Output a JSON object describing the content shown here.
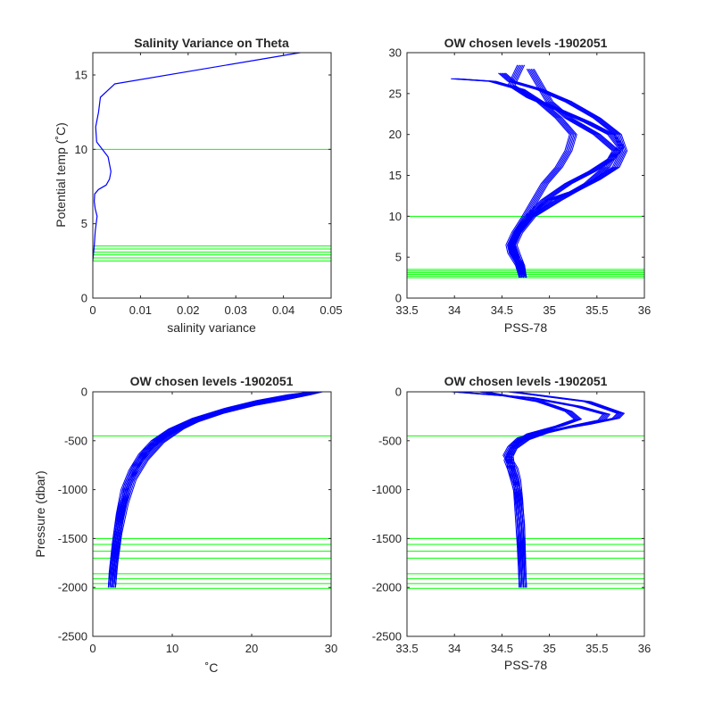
{
  "colors": {
    "profile": "#0000ff",
    "levels": "#00ff00",
    "axes": "#262626"
  },
  "chart_data": [
    {
      "type": "line",
      "title": "Salinity Variance on Theta",
      "xlabel": "salinity variance",
      "ylabel": "Potential temp (˚C)",
      "xlim": [
        0,
        0.05
      ],
      "ylim": [
        0,
        16.5
      ],
      "xticks": [
        0,
        0.01,
        0.02,
        0.03,
        0.04,
        0.05
      ],
      "xtick_labels": [
        "0",
        "0.01",
        "0.02",
        "0.03",
        "0.04",
        "0.05"
      ],
      "yticks": [
        0,
        5,
        10,
        15
      ],
      "ytick_labels": [
        "0",
        "5",
        "10",
        "15"
      ],
      "grid": false,
      "series": [
        {
          "x": [
            0.0,
            0.0003,
            0.0005,
            0.0009,
            0.0005,
            0.0003,
            0.0004,
            0.0012,
            0.0028,
            0.0035,
            0.0038,
            0.0032,
            0.0008,
            0.0006,
            0.0009,
            0.0012,
            0.0016,
            0.0046,
            0.0435
          ],
          "y": [
            2.5,
            3.5,
            4.5,
            5.5,
            6.0,
            6.5,
            7.0,
            7.3,
            7.6,
            8.0,
            8.5,
            9.5,
            10.5,
            11.5,
            12.0,
            12.5,
            13.5,
            14.4,
            16.5
          ]
        }
      ],
      "h_levels": [
        10,
        3.5,
        3.3,
        3.1,
        2.9,
        2.7,
        2.5
      ]
    },
    {
      "type": "line",
      "title": "OW chosen levels -1902051",
      "xlabel": "PSS-78",
      "ylabel": "",
      "xlim": [
        33.5,
        36
      ],
      "ylim": [
        0,
        30
      ],
      "xticks": [
        33.5,
        34,
        34.5,
        35,
        35.5,
        36
      ],
      "xtick_labels": [
        "33.5",
        "34",
        "34.5",
        "35",
        "35.5",
        "36"
      ],
      "yticks": [
        0,
        5,
        10,
        15,
        20,
        25,
        30
      ],
      "ytick_labels": [
        "0",
        "5",
        "10",
        "15",
        "20",
        "25",
        "30"
      ],
      "grid": false,
      "series": [
        {
          "x": [
            34.72,
            34.7,
            34.62,
            34.6,
            34.66,
            34.8,
            35.0,
            35.25,
            35.5,
            35.7,
            35.78,
            35.72,
            35.5,
            35.2,
            34.9,
            34.6,
            34.5
          ],
          "y": [
            2.5,
            4.0,
            5.5,
            6.5,
            8.0,
            10.0,
            12.0,
            13.0,
            14.5,
            16.0,
            18.0,
            20.0,
            22.0,
            24.0,
            25.5,
            26.5,
            27.5
          ]
        },
        {
          "x": [
            34.72,
            34.68,
            34.6,
            34.58,
            34.64,
            34.75,
            34.85,
            34.95,
            35.1,
            35.2,
            35.25,
            35.1,
            34.9,
            34.7,
            34.4,
            34.0
          ],
          "y": [
            2.5,
            4.0,
            5.5,
            6.5,
            8.0,
            10.0,
            12.0,
            14.0,
            16.0,
            18.0,
            20.0,
            22.0,
            24.0,
            25.5,
            26.5,
            26.8
          ]
        },
        {
          "x": [
            34.72,
            34.7,
            34.65,
            34.62,
            34.68,
            34.82,
            35.1,
            35.4,
            35.6,
            35.7,
            35.5,
            35.2,
            35.0,
            34.9,
            34.8
          ],
          "y": [
            2.5,
            4.0,
            5.5,
            6.5,
            8.0,
            10.0,
            12.0,
            14.0,
            16.0,
            18.0,
            20.0,
            22.0,
            24.0,
            26.0,
            28.0
          ]
        },
        {
          "x": [
            34.72,
            34.69,
            34.63,
            34.6,
            34.66,
            34.78,
            34.95,
            35.2,
            35.45,
            35.65,
            35.75,
            35.65,
            35.4,
            35.1,
            34.8,
            34.6,
            34.7
          ],
          "y": [
            2.5,
            4.0,
            5.5,
            6.5,
            8.0,
            10.0,
            12.0,
            14.0,
            15.5,
            17.0,
            18.5,
            20.0,
            21.5,
            23.0,
            24.5,
            26.0,
            28.5
          ]
        }
      ],
      "h_levels": [
        10,
        3.5,
        3.3,
        3.1,
        2.9,
        2.7,
        2.5
      ]
    },
    {
      "type": "line",
      "title": "OW chosen levels -1902051",
      "xlabel": "˚C",
      "ylabel": "Pressure (dbar)",
      "xlim": [
        0,
        30
      ],
      "ylim": [
        -2500,
        0
      ],
      "xticks": [
        0,
        10,
        20,
        30
      ],
      "xtick_labels": [
        "0",
        "10",
        "20",
        "30"
      ],
      "yticks": [
        -2500,
        -2000,
        -1500,
        -1000,
        -500,
        0
      ],
      "ytick_labels": [
        "-2500",
        "-2000",
        "-1500",
        "-1000",
        "-500",
        "0"
      ],
      "grid": false,
      "series": [
        {
          "x": [
            2.4,
            2.6,
            3.0,
            3.6,
            4.4,
            5.5,
            7.0,
            9.0,
            12.0,
            16.0,
            20.0,
            24.0,
            27.0,
            28.5
          ],
          "y": [
            -2000,
            -1800,
            -1500,
            -1200,
            -950,
            -750,
            -580,
            -450,
            -330,
            -220,
            -140,
            -80,
            -30,
            0
          ]
        },
        {
          "x": [
            2.4,
            2.7,
            3.2,
            4.0,
            5.0,
            6.5,
            8.5,
            11.0,
            14.0,
            18.0,
            22.0,
            25.0,
            27.5
          ],
          "y": [
            -2000,
            -1750,
            -1450,
            -1150,
            -900,
            -700,
            -520,
            -380,
            -260,
            -160,
            -90,
            -40,
            0
          ]
        },
        {
          "x": [
            2.4,
            2.5,
            2.9,
            3.4,
            4.0,
            5.0,
            6.2,
            7.8,
            10.0,
            13.0,
            17.0,
            21.0,
            25.0,
            28.0
          ],
          "y": [
            -2000,
            -1850,
            -1550,
            -1250,
            -1000,
            -800,
            -640,
            -500,
            -380,
            -270,
            -170,
            -90,
            -30,
            0
          ]
        }
      ],
      "h_levels": [
        -450,
        -1500,
        -1560,
        -1630,
        -1700,
        -1860,
        -1910,
        -1960,
        -2010
      ]
    },
    {
      "type": "line",
      "title": "OW chosen levels -1902051",
      "xlabel": "PSS-78",
      "ylabel": "",
      "xlim": [
        33.5,
        36
      ],
      "ylim": [
        -2500,
        0
      ],
      "xticks": [
        33.5,
        34,
        34.5,
        35,
        35.5,
        36
      ],
      "xtick_labels": [
        "33.5",
        "34",
        "34.5",
        "35",
        "35.5",
        "36"
      ],
      "yticks": [
        -2500,
        -2000,
        -1500,
        -1000,
        -500,
        0
      ],
      "ytick_labels": [
        "-2500",
        "-2000",
        "-1500",
        "-1000",
        "-500",
        "0"
      ],
      "grid": false,
      "series": [
        {
          "x": [
            34.72,
            34.71,
            34.7,
            34.68,
            34.66,
            34.63,
            34.55,
            34.6,
            34.7,
            35.0,
            35.4,
            35.7,
            35.75,
            35.4,
            34.6
          ],
          "y": [
            -2000,
            -1700,
            -1400,
            -1100,
            -900,
            -780,
            -650,
            -560,
            -470,
            -400,
            -330,
            -270,
            -220,
            -100,
            0
          ]
        },
        {
          "x": [
            34.72,
            34.7,
            34.68,
            34.66,
            34.6,
            34.58,
            34.65,
            34.8,
            35.1,
            35.3,
            35.2,
            34.9,
            34.3
          ],
          "y": [
            -2000,
            -1600,
            -1300,
            -1000,
            -800,
            -650,
            -520,
            -430,
            -350,
            -280,
            -200,
            -100,
            0
          ]
        },
        {
          "x": [
            34.72,
            34.71,
            34.7,
            34.67,
            34.62,
            34.56,
            34.62,
            34.75,
            34.95,
            35.25,
            35.55,
            35.6,
            35.3,
            34.8,
            34.0
          ],
          "y": [
            -2000,
            -1650,
            -1350,
            -1050,
            -850,
            -700,
            -580,
            -490,
            -420,
            -350,
            -290,
            -230,
            -150,
            -60,
            0
          ]
        }
      ],
      "h_levels": [
        -450,
        -1500,
        -1560,
        -1630,
        -1700,
        -1860,
        -1910,
        -1960,
        -2010
      ]
    }
  ]
}
